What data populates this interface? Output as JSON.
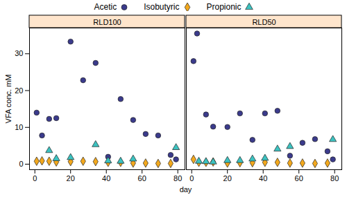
{
  "chart_data": {
    "type": "scatter",
    "x_label": "day",
    "y_label": "VFA conc. mM",
    "panels": [
      "RLD100",
      "RLD50"
    ],
    "xlim": [
      -3,
      84
    ],
    "ylim": [
      -1.5,
      37
    ],
    "xticks": [
      0,
      20,
      40,
      60,
      80
    ],
    "yticks": [
      0,
      10,
      20,
      30
    ],
    "legend": "top",
    "grid": false,
    "series": [
      {
        "name": "Acetic",
        "color": "#3b3b8c",
        "marker": "circle",
        "data": [
          {
            "x": [
              1,
              4,
              8,
              12,
              20,
              27,
              34,
              41,
              48,
              55,
              62,
              69,
              76,
              79
            ],
            "values": [
              14,
              7.8,
              12.3,
              12.5,
              33.3,
              22.8,
              27.5,
              2,
              17.7,
              12,
              8.2,
              7.8,
              2.5,
              1.3
            ]
          },
          {
            "x": [
              1,
              3,
              8,
              12,
              20,
              27,
              34,
              41,
              48,
              55,
              62,
              69,
              76,
              79
            ],
            "values": [
              28,
              35.5,
              13.5,
              10.2,
              10.1,
              13.8,
              6.6,
              13.8,
              14.5,
              2.3,
              5.8,
              6.8,
              3.5,
              1.3
            ]
          }
        ]
      },
      {
        "name": "Isobutyric",
        "color": "#f2a81d",
        "marker": "diamond",
        "data": [
          {
            "x": [
              1,
              4,
              8,
              12,
              20,
              27,
              34,
              41,
              48,
              55,
              62,
              69,
              76
            ],
            "values": [
              0.8,
              0.9,
              0.8,
              0.6,
              0.7,
              0.8,
              0.7,
              0.5,
              0.5,
              0.3,
              0.3,
              0.2,
              0.2
            ]
          },
          {
            "x": [
              1,
              4,
              8,
              12,
              20,
              27,
              34,
              41,
              48,
              55,
              62,
              69,
              76
            ],
            "values": [
              1.3,
              0.5,
              0.5,
              0.6,
              0.3,
              0.4,
              0.4,
              0.5,
              0.5,
              0.3,
              0.3,
              0.2,
              0.3
            ]
          }
        ]
      },
      {
        "name": "Propionic",
        "color": "#3cc2c0",
        "marker": "triangle",
        "data": [
          {
            "x": [
              8,
              12,
              20,
              34,
              41,
              48,
              55,
              79
            ],
            "values": [
              3.7,
              1.5,
              1.8,
              5.3,
              0.9,
              0.8,
              1.4,
              4.5
            ]
          },
          {
            "x": [
              4,
              8,
              12,
              20,
              27,
              34,
              41,
              48,
              55,
              79
            ],
            "values": [
              0.8,
              0.7,
              0.6,
              1.0,
              1.0,
              1.4,
              1.6,
              4.1,
              4.8,
              6.7
            ]
          }
        ]
      }
    ]
  }
}
